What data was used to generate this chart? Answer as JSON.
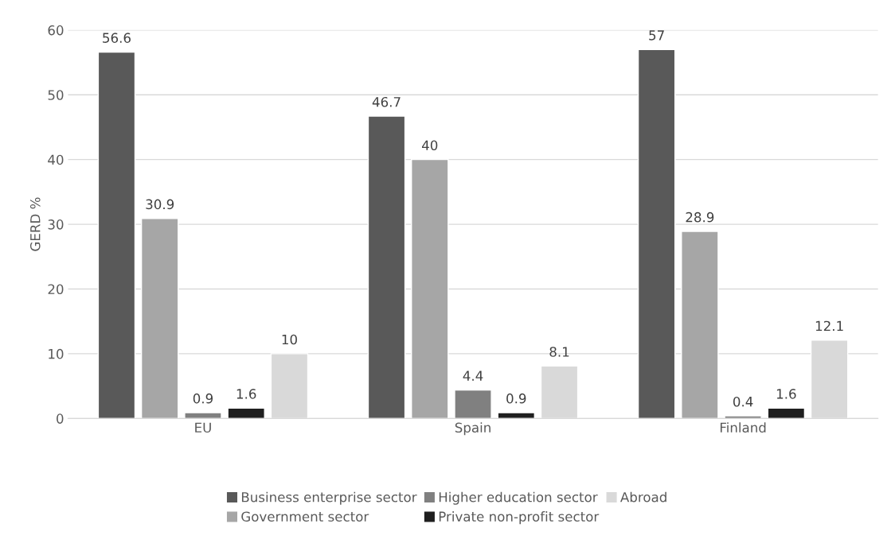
{
  "chart_data": {
    "type": "bar",
    "ylabel": "GERD %",
    "categories": [
      "EU",
      "Spain",
      "Finland"
    ],
    "series": [
      {
        "name": "Business enterprise sector",
        "color": "#595959",
        "values": [
          56.6,
          46.7,
          57
        ]
      },
      {
        "name": "Government sector",
        "color": "#a6a6a6",
        "values": [
          30.9,
          40,
          28.9
        ]
      },
      {
        "name": "Higher education sector",
        "color": "#808080",
        "values": [
          0.9,
          4.4,
          0.4
        ]
      },
      {
        "name": "Private non-profit sector",
        "color": "#1f1f1f",
        "values": [
          1.6,
          0.9,
          1.6
        ]
      },
      {
        "name": "Abroad",
        "color": "#d9d9d9",
        "values": [
          10,
          8.1,
          12.1
        ]
      }
    ],
    "ylim": [
      0,
      60
    ],
    "yticks": [
      0,
      10,
      20,
      30,
      40,
      50,
      60
    ],
    "grid": "y",
    "legend": "bottom",
    "data_labels": true
  }
}
